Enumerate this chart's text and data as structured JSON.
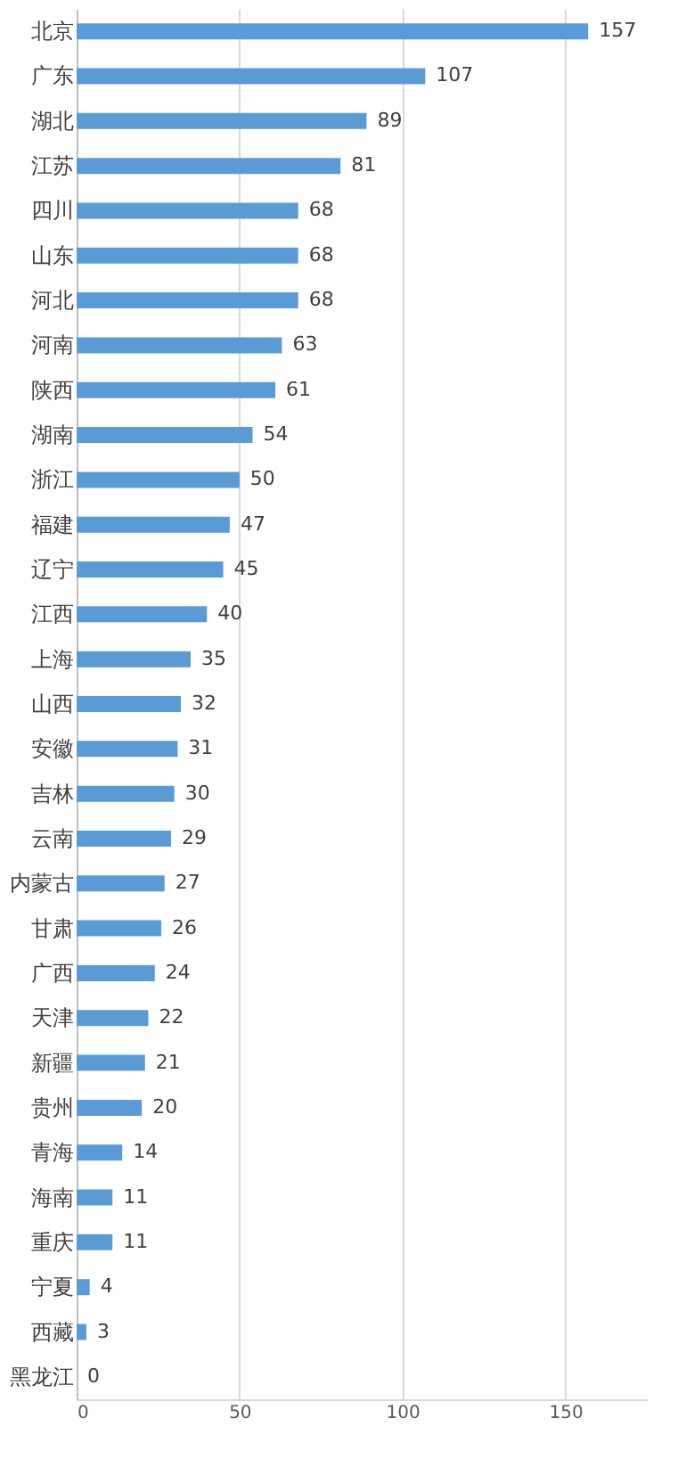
{
  "chart_data": {
    "type": "bar",
    "orientation": "horizontal",
    "categories": [
      "北京",
      "广东",
      "湖北",
      "江苏",
      "四川",
      "山东",
      "河北",
      "河南",
      "陕西",
      "湖南",
      "浙江",
      "福建",
      "辽宁",
      "江西",
      "上海",
      "山西",
      "安徽",
      "吉林",
      "云南",
      "内蒙古",
      "甘肃",
      "广西",
      "天津",
      "新疆",
      "贵州",
      "青海",
      "海南",
      "重庆",
      "宁夏",
      "西藏",
      "黑龙江"
    ],
    "values": [
      157,
      107,
      89,
      81,
      68,
      68,
      68,
      63,
      61,
      54,
      50,
      47,
      45,
      40,
      35,
      32,
      31,
      30,
      29,
      27,
      26,
      24,
      22,
      21,
      20,
      14,
      11,
      11,
      4,
      3,
      0
    ],
    "color": "#5b9bd5",
    "xlim": [
      0,
      175
    ],
    "xticks": [
      0,
      50,
      100,
      150
    ],
    "grid": "x",
    "data_labels": true
  }
}
